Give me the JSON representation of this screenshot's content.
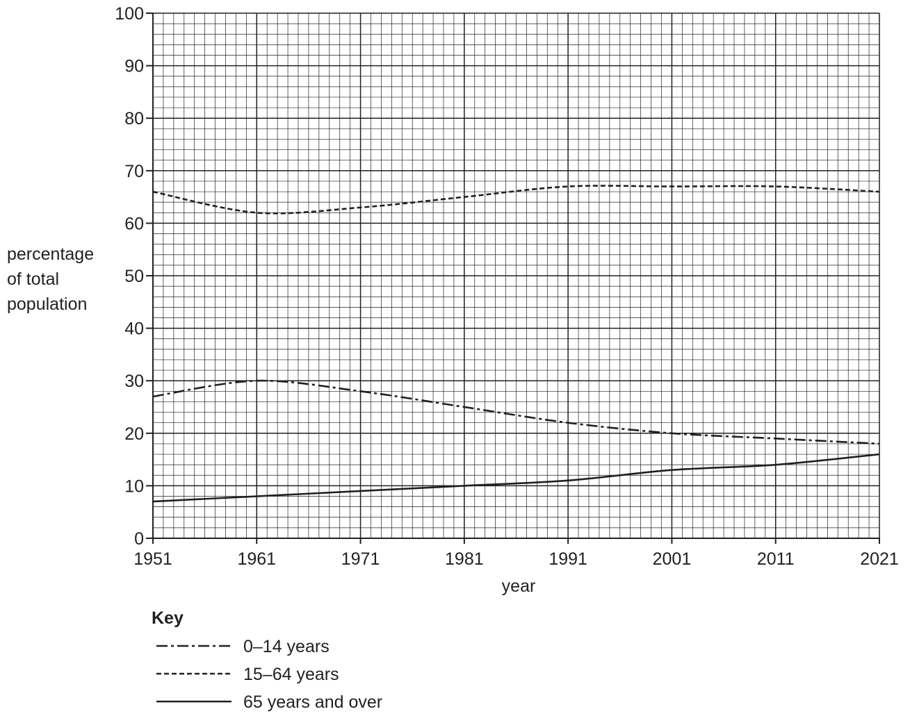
{
  "chart_data": {
    "type": "line",
    "xlabel": "year",
    "ylabel": [
      "percentage",
      "of total",
      "population"
    ],
    "x_ticks": [
      "1951",
      "1961",
      "1971",
      "1981",
      "1991",
      "2001",
      "2011",
      "2021"
    ],
    "y_ticks": [
      "0",
      "10",
      "20",
      "30",
      "40",
      "50",
      "60",
      "70",
      "80",
      "90",
      "100"
    ],
    "xlim": [
      1951,
      2021
    ],
    "ylim": [
      0,
      100
    ],
    "grid": true,
    "x": [
      1951,
      1961,
      1971,
      1981,
      1991,
      2001,
      2011,
      2021
    ],
    "series": [
      {
        "name": "0–14 years",
        "line_style": "dash-dot",
        "values": [
          27,
          30,
          28,
          25,
          22,
          20,
          19,
          18
        ]
      },
      {
        "name": "15–64 years",
        "line_style": "dashed",
        "values": [
          66,
          62,
          63,
          65,
          67,
          67,
          67,
          66
        ]
      },
      {
        "name": "65 years and over",
        "line_style": "solid",
        "values": [
          7,
          8,
          9,
          10,
          11,
          13,
          14,
          16
        ]
      }
    ],
    "legend": {
      "title": "Key",
      "placement": "bottom-left"
    }
  }
}
